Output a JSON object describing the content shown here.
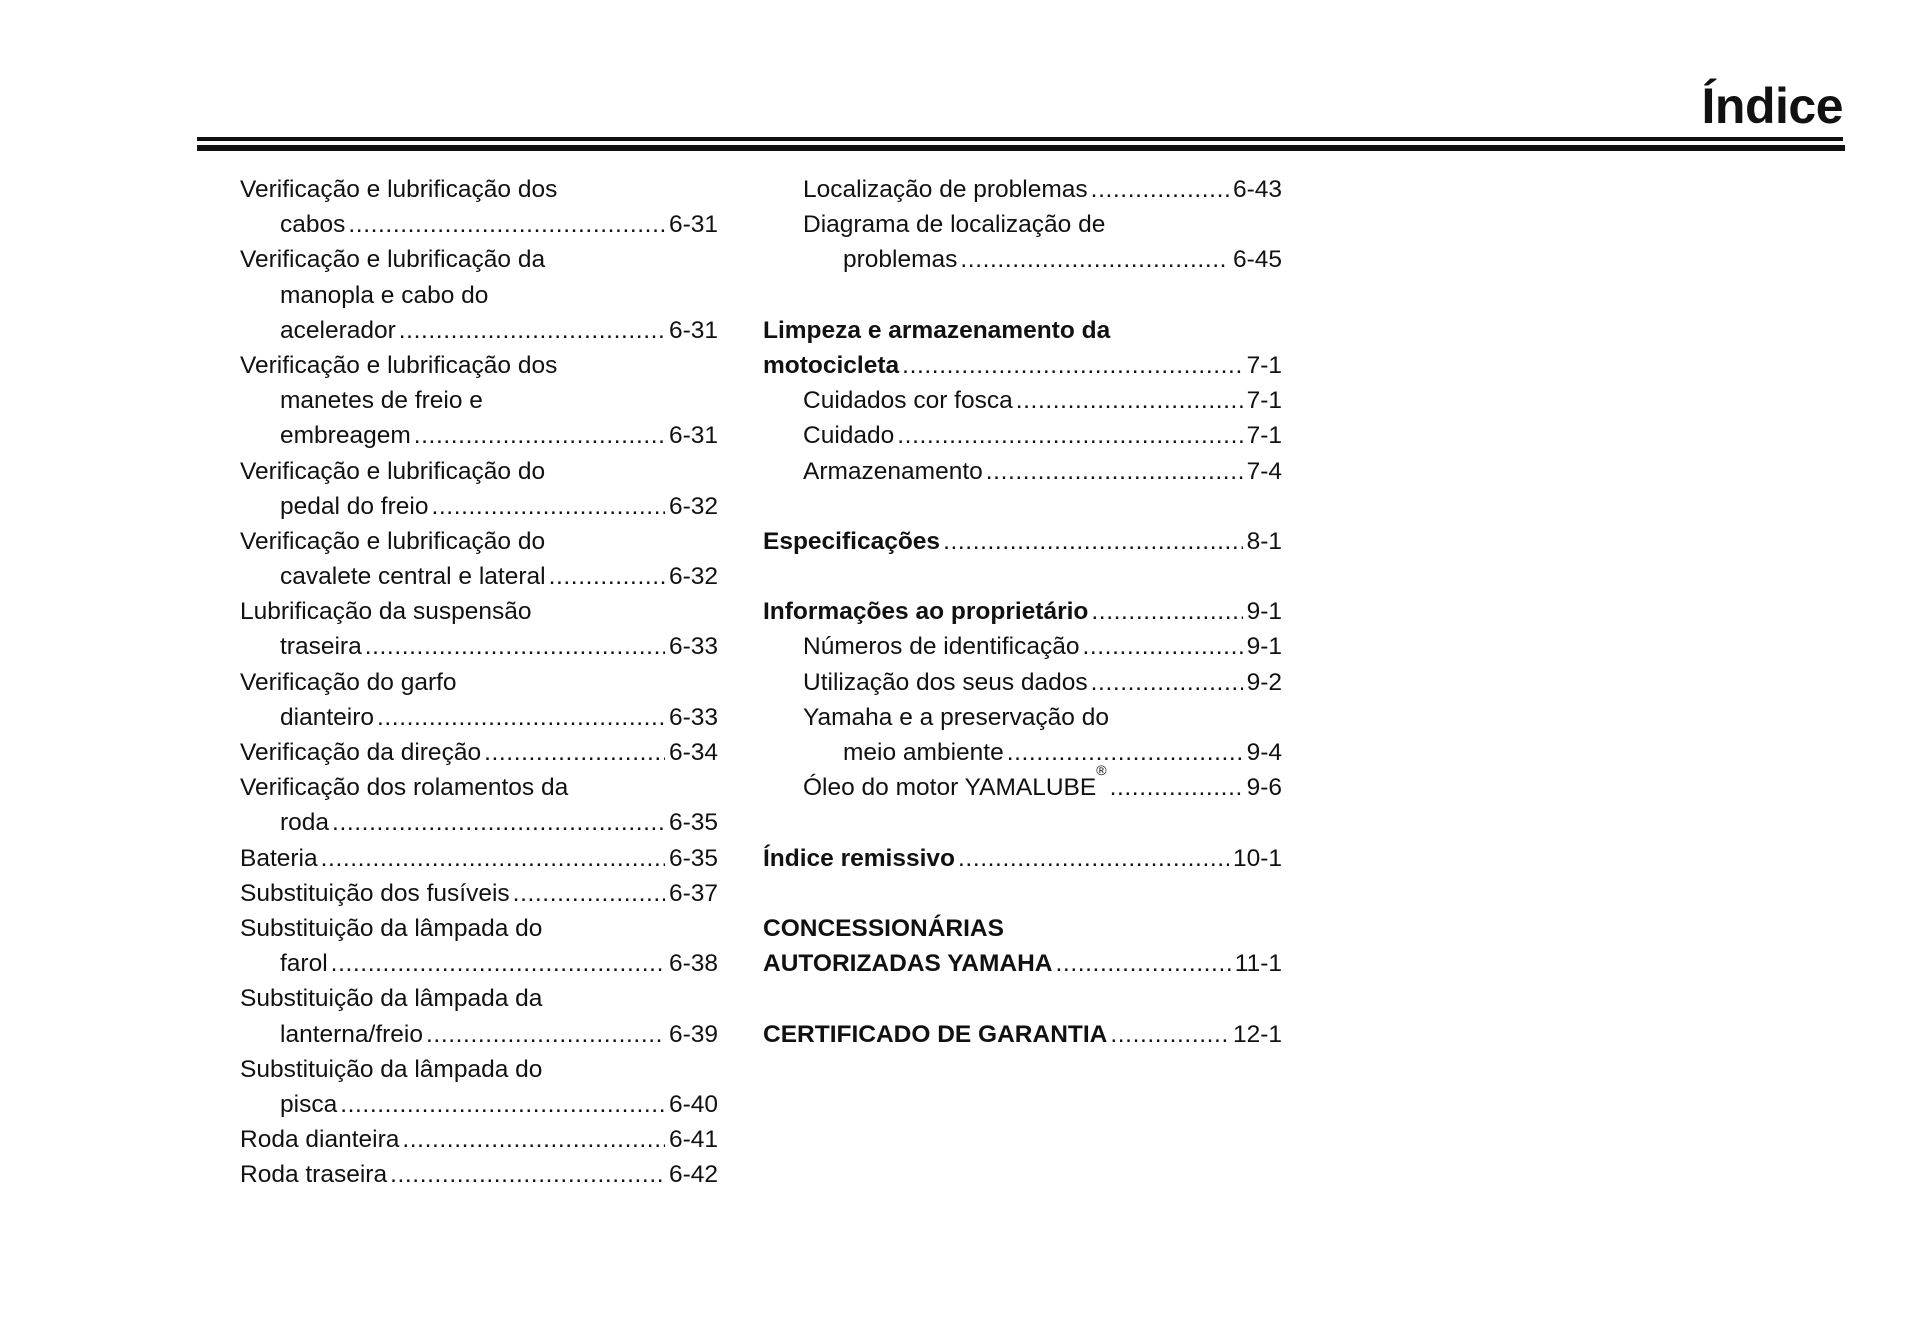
{
  "header": {
    "title": "Índice"
  },
  "left_column": [
    {
      "style": "main",
      "lines": [
        "Verificação e lubrificação dos",
        "cabos"
      ],
      "page": "6-31"
    },
    {
      "style": "main",
      "lines": [
        "Verificação e lubrificação da",
        "manopla e cabo do",
        "acelerador"
      ],
      "page": "6-31"
    },
    {
      "style": "main",
      "lines": [
        "Verificação e lubrificação dos",
        "manetes de freio e",
        "embreagem"
      ],
      "page": "6-31"
    },
    {
      "style": "main",
      "lines": [
        "Verificação e lubrificação do",
        "pedal do freio"
      ],
      "page": "6-32"
    },
    {
      "style": "main",
      "lines": [
        "Verificação e lubrificação do",
        "cavalete central e lateral"
      ],
      "page": "6-32"
    },
    {
      "style": "main",
      "lines": [
        "Lubrificação da suspensão",
        "traseira"
      ],
      "page": "6-33"
    },
    {
      "style": "main",
      "lines": [
        "Verificação do garfo",
        "dianteiro"
      ],
      "page": "6-33"
    },
    {
      "style": "main",
      "lines": [
        "Verificação da direção"
      ],
      "page": "6-34"
    },
    {
      "style": "main",
      "lines": [
        "Verificação dos rolamentos da",
        "roda"
      ],
      "page": "6-35"
    },
    {
      "style": "main",
      "lines": [
        "Bateria"
      ],
      "page": "6-35"
    },
    {
      "style": "main",
      "lines": [
        "Substituição dos fusíveis"
      ],
      "page": "6-37"
    },
    {
      "style": "main",
      "lines": [
        "Substituição da lâmpada do",
        "farol"
      ],
      "page": "6-38"
    },
    {
      "style": "main",
      "lines": [
        "Substituição da lâmpada da",
        "lanterna/freio"
      ],
      "page": "6-39"
    },
    {
      "style": "main",
      "lines": [
        "Substituição da lâmpada do",
        "pisca"
      ],
      "page": "6-40"
    },
    {
      "style": "main",
      "lines": [
        "Roda dianteira"
      ],
      "page": "6-41"
    },
    {
      "style": "main",
      "lines": [
        "Roda traseira"
      ],
      "page": "6-42"
    }
  ],
  "right_column": [
    [
      {
        "style": "sub",
        "lines": [
          "Localização de problemas"
        ],
        "page": "6-43"
      },
      {
        "style": "sub",
        "lines": [
          "Diagrama de localização de",
          "problemas"
        ],
        "page": "6-45"
      }
    ],
    [
      {
        "style": "heading",
        "lines": [
          "Limpeza e armazenamento da",
          "motocicleta"
        ],
        "page": "7-1"
      },
      {
        "style": "sub",
        "lines": [
          "Cuidados cor fosca"
        ],
        "page": "7-1"
      },
      {
        "style": "sub",
        "lines": [
          "Cuidado"
        ],
        "page": "7-1"
      },
      {
        "style": "sub",
        "lines": [
          "Armazenamento"
        ],
        "page": "7-4"
      }
    ],
    [
      {
        "style": "heading",
        "lines": [
          "Especificações"
        ],
        "page": "8-1"
      }
    ],
    [
      {
        "style": "heading",
        "lines": [
          "Informações ao proprietário"
        ],
        "page": "9-1"
      },
      {
        "style": "sub",
        "lines": [
          "Números de identificação"
        ],
        "page": "9-1"
      },
      {
        "style": "sub",
        "lines": [
          "Utilização dos seus dados"
        ],
        "page": "9-2"
      },
      {
        "style": "sub",
        "lines": [
          "Yamaha e a preservação do",
          "meio ambiente"
        ],
        "page": "9-4"
      },
      {
        "style": "sub",
        "lines": [
          "Óleo do motor YAMALUBE"
        ],
        "sup": "®",
        "page": "9-6"
      }
    ],
    [
      {
        "style": "heading",
        "lines": [
          "Índice remissivo"
        ],
        "page": "10-1"
      }
    ],
    [
      {
        "style": "heading",
        "lines": [
          "CONCESSIONÁRIAS",
          "AUTORIZADAS YAMAHA"
        ],
        "page": "11-1"
      }
    ],
    [
      {
        "style": "heading",
        "lines": [
          "CERTIFICADO DE GARANTIA"
        ],
        "page": "12-1"
      }
    ]
  ]
}
